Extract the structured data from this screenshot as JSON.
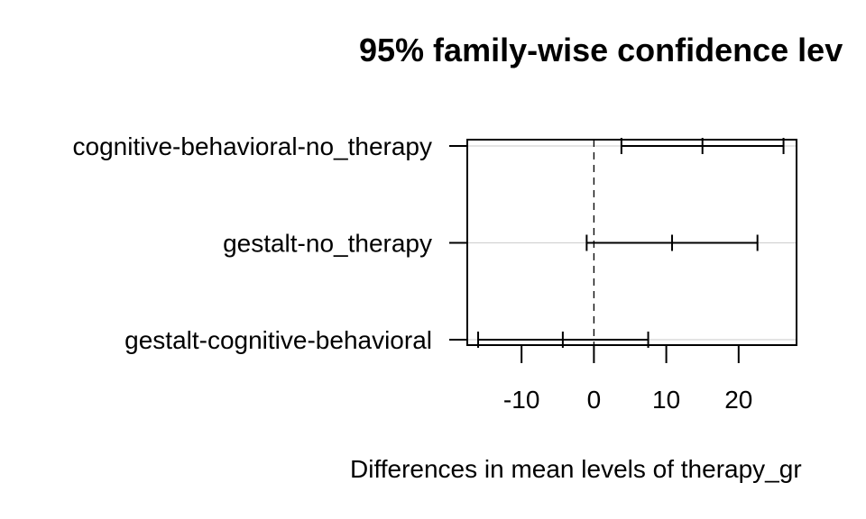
{
  "chart_data": {
    "type": "interval",
    "title": "95% family-wise confidence lev",
    "xlabel": "Differences in mean levels of therapy_gr",
    "ylabel": "",
    "xlim": [
      -17.5,
      28
    ],
    "x_ticks": [
      -10,
      0,
      10,
      20
    ],
    "reference_line": 0,
    "grid": true,
    "comparisons": [
      {
        "label": "cognitive-behavioral-no_therapy",
        "lower": 3.8,
        "estimate": 15.0,
        "upper": 26.2
      },
      {
        "label": "gestalt-no_therapy",
        "lower": -1.0,
        "estimate": 10.8,
        "upper": 22.6
      },
      {
        "label": "gestalt-cognitive-behavioral",
        "lower": -16.0,
        "estimate": -4.3,
        "upper": 7.5
      }
    ]
  }
}
